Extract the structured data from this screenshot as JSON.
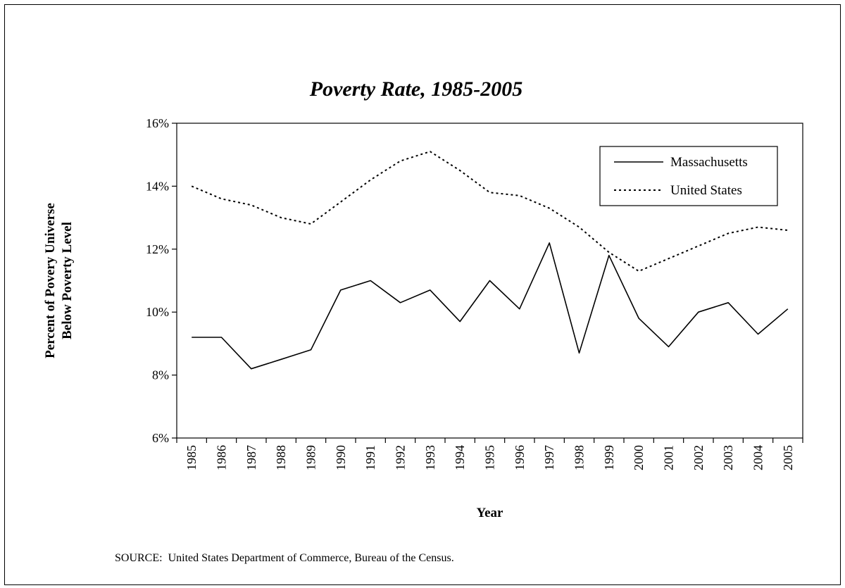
{
  "chart_data": {
    "type": "line",
    "title": "Poverty Rate, 1985-2005",
    "xlabel": "Year",
    "ylabel_lines": [
      "Percent of Povery Universe",
      "Below Poverty Level"
    ],
    "categories": [
      "1985",
      "1986",
      "1987",
      "1988",
      "1989",
      "1990",
      "1991",
      "1992",
      "1993",
      "1994",
      "1995",
      "1996",
      "1997",
      "1998",
      "1999",
      "2000",
      "2001",
      "2002",
      "2003",
      "2004",
      "2005"
    ],
    "ylim": [
      6,
      16
    ],
    "yticks": [
      6,
      8,
      10,
      12,
      14,
      16
    ],
    "ytick_labels": [
      "6%",
      "8%",
      "10%",
      "12%",
      "14%",
      "16%"
    ],
    "grid": false,
    "legend_position": "top-right",
    "series": [
      {
        "name": "Massachusetts",
        "style": "solid",
        "values": [
          9.2,
          9.2,
          8.2,
          8.5,
          8.8,
          10.7,
          11.0,
          10.3,
          10.7,
          9.7,
          11.0,
          10.1,
          12.2,
          8.7,
          11.8,
          9.8,
          8.9,
          10.0,
          10.3,
          9.3,
          10.1
        ]
      },
      {
        "name": "United States",
        "style": "dotted",
        "values": [
          14.0,
          13.6,
          13.4,
          13.0,
          12.8,
          13.5,
          14.2,
          14.8,
          15.1,
          14.5,
          13.8,
          13.7,
          13.3,
          12.7,
          11.9,
          11.3,
          11.7,
          12.1,
          12.5,
          12.7,
          12.6
        ]
      }
    ]
  },
  "footer": {
    "source": "SOURCE:  United States Department of Commerce, Bureau of the Census."
  }
}
